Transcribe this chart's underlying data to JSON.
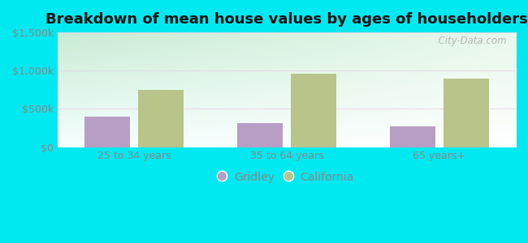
{
  "title": "Breakdown of mean house values by ages of householders",
  "categories": [
    "25 to 34 years",
    "35 to 64 years",
    "65 years+"
  ],
  "gridley_values": [
    400000,
    310000,
    270000
  ],
  "california_values": [
    750000,
    955000,
    900000
  ],
  "ylim": [
    0,
    1500000
  ],
  "yticks": [
    0,
    500000,
    1000000,
    1500000
  ],
  "ytick_labels": [
    "$0",
    "$500k",
    "$1,000k",
    "$1,500k"
  ],
  "gridley_color": "#b89ec4",
  "california_color": "#b8c48a",
  "background_outer": "#00e8f0",
  "background_inner_top_left": "#c8ecd4",
  "background_inner_top_right": "#e8f8ec",
  "background_inner_bottom": "#f0faff",
  "watermark": "  City-Data.com",
  "legend_labels": [
    "Gridley",
    "California"
  ],
  "title_fontsize": 13,
  "tick_fontsize": 9,
  "legend_fontsize": 10,
  "tick_color": "#888888",
  "legend_color": "#888888"
}
